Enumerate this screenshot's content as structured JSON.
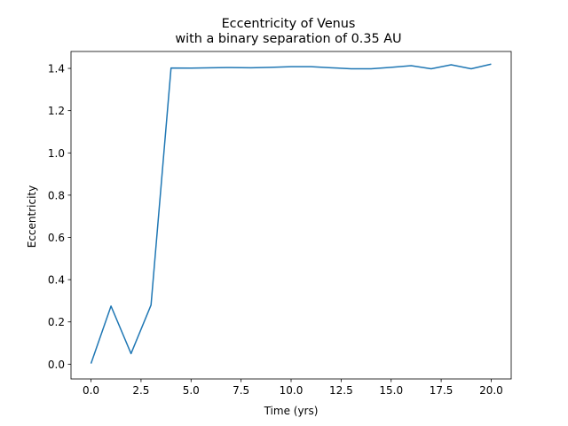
{
  "chart_data": {
    "type": "line",
    "title": "Eccentricity of Venus",
    "subtitle": "with a binary separation of 0.35 AU",
    "xlabel": "Time (yrs)",
    "ylabel": "Eccentricity",
    "xlim": [
      -1,
      21
    ],
    "ylim": [
      -0.07,
      1.48
    ],
    "grid": false,
    "legend": "none",
    "color": "#1f77b4",
    "x_ticks": [
      0.0,
      2.5,
      5.0,
      7.5,
      10.0,
      12.5,
      15.0,
      17.5,
      20.0
    ],
    "x_tick_labels": [
      "0.0",
      "2.5",
      "5.0",
      "7.5",
      "10.0",
      "12.5",
      "15.0",
      "17.5",
      "20.0"
    ],
    "y_ticks": [
      0.0,
      0.2,
      0.4,
      0.6,
      0.8,
      1.0,
      1.2,
      1.4
    ],
    "y_tick_labels": [
      "0.0",
      "0.2",
      "0.4",
      "0.6",
      "0.8",
      "1.0",
      "1.2",
      "1.4"
    ],
    "x": [
      0,
      1,
      2,
      3,
      4,
      5,
      6,
      7,
      8,
      9,
      10,
      11,
      12,
      13,
      14,
      15,
      16,
      17,
      18,
      19,
      20
    ],
    "series": [
      {
        "values": [
          0.003,
          0.275,
          0.05,
          0.28,
          1.402,
          1.401,
          1.403,
          1.404,
          1.403,
          1.405,
          1.408,
          1.408,
          1.403,
          1.398,
          1.398,
          1.405,
          1.413,
          1.398,
          1.417,
          1.398,
          1.42
        ]
      }
    ]
  }
}
